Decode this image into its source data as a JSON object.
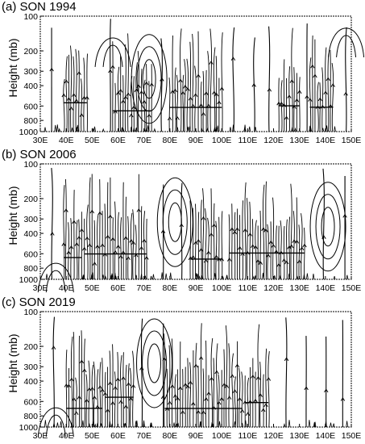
{
  "chart_data": [
    {
      "type": "streamline",
      "title": "(a) SON 1994",
      "ylabel": "Height (mb)",
      "xlabel": "",
      "xlim": [
        30,
        150
      ],
      "y_scale": "log-pressure",
      "ylim": [
        1000,
        100
      ],
      "x_ticks": [
        "30E",
        "40E",
        "50E",
        "60E",
        "70E",
        "80E",
        "90E",
        "100E",
        "110E",
        "120E",
        "130E",
        "140E",
        "150E"
      ],
      "y_ticks": [
        "100",
        "200",
        "300",
        "400",
        "600",
        "800",
        "1000"
      ],
      "circulation_features": [
        {
          "lon": 72,
          "p": 350,
          "kind": "closed-cell"
        },
        {
          "lon": 58,
          "p": 170,
          "kind": "curved-streamlines"
        },
        {
          "lon": 148,
          "p": 140,
          "kind": "curved-streamlines"
        }
      ],
      "dense_streamline_regions": [
        {
          "lon_min": 39,
          "lon_max": 48
        },
        {
          "lon_min": 58,
          "lon_max": 73
        },
        {
          "lon_min": 80,
          "lon_max": 100
        },
        {
          "lon_min": 122,
          "lon_max": 130
        },
        {
          "lon_min": 134,
          "lon_max": 143
        }
      ]
    },
    {
      "type": "streamline",
      "title": "(b) SON 2006",
      "ylabel": "Height (mb)",
      "xlabel": "",
      "xlim": [
        30,
        150
      ],
      "y_scale": "log-pressure",
      "ylim": [
        1000,
        100
      ],
      "x_ticks": [
        "30E",
        "40E",
        "50E",
        "60E",
        "70E",
        "80E",
        "90E",
        "100E",
        "110E",
        "120E",
        "130E",
        "140E",
        "150E"
      ],
      "y_ticks": [
        "100",
        "200",
        "300",
        "400",
        "600",
        "800",
        "1000"
      ],
      "circulation_features": [
        {
          "lon": 82,
          "p": 320,
          "kind": "closed-cell"
        },
        {
          "lon": 141,
          "p": 350,
          "kind": "closed-cell"
        },
        {
          "lon": 36,
          "p": 800,
          "kind": "curved-streamlines"
        }
      ],
      "dense_streamline_regions": [
        {
          "lon_min": 39,
          "lon_max": 46
        },
        {
          "lon_min": 47,
          "lon_max": 71
        },
        {
          "lon_min": 88,
          "lon_max": 100
        },
        {
          "lon_min": 103,
          "lon_max": 132
        }
      ]
    },
    {
      "type": "streamline",
      "title": "(c) SON 2019",
      "ylabel": "Height (mb)",
      "xlabel": "",
      "xlim": [
        30,
        150
      ],
      "y_scale": "log-pressure",
      "ylim": [
        1000,
        100
      ],
      "x_ticks": [
        "30E",
        "40E",
        "50E",
        "60E",
        "70E",
        "80E",
        "90E",
        "100E",
        "110E",
        "120E",
        "130E",
        "140E",
        "150E"
      ],
      "y_ticks": [
        "100",
        "200",
        "300",
        "400",
        "600",
        "800",
        "1000"
      ],
      "circulation_features": [
        {
          "lon": 74,
          "p": 280,
          "kind": "closed-cell"
        },
        {
          "lon": 36,
          "p": 750,
          "kind": "curved-streamlines"
        }
      ],
      "dense_streamline_regions": [
        {
          "lon_min": 40,
          "lon_max": 54
        },
        {
          "lon_min": 55,
          "lon_max": 66
        },
        {
          "lon_min": 78,
          "lon_max": 108
        },
        {
          "lon_min": 109,
          "lon_max": 118
        }
      ]
    }
  ]
}
